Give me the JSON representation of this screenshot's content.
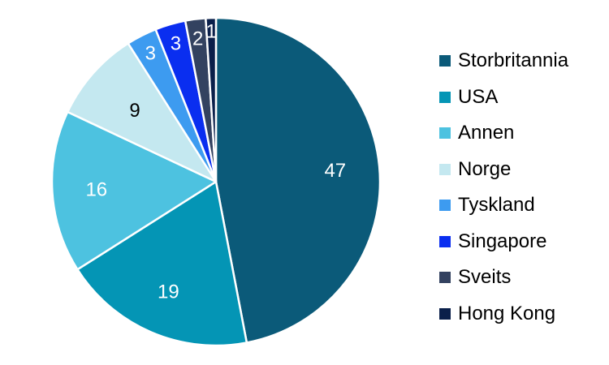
{
  "chart_data": {
    "type": "pie",
    "title": "",
    "categories": [
      "Storbritannia",
      "USA",
      "Annen",
      "Norge",
      "Tyskland",
      "Singapore",
      "Sveits",
      "Hong Kong"
    ],
    "values": [
      47,
      19,
      16,
      9,
      3,
      3,
      2,
      1
    ],
    "data_labels": [
      "47",
      "19",
      "16",
      "9",
      "3",
      "3",
      "2",
      "1"
    ],
    "colors": [
      "#0b5a79",
      "#0495b5",
      "#4dc2e0",
      "#c4e8f0",
      "#3d9bf0",
      "#0a2ef0",
      "#334260",
      "#0a1f4a"
    ],
    "label_colors": [
      "#ffffff",
      "#ffffff",
      "#ffffff",
      "#000000",
      "#ffffff",
      "#ffffff",
      "#ffffff",
      "#ffffff"
    ],
    "start_angle": "12 o'clock, clockwise",
    "legend_position": "right"
  }
}
